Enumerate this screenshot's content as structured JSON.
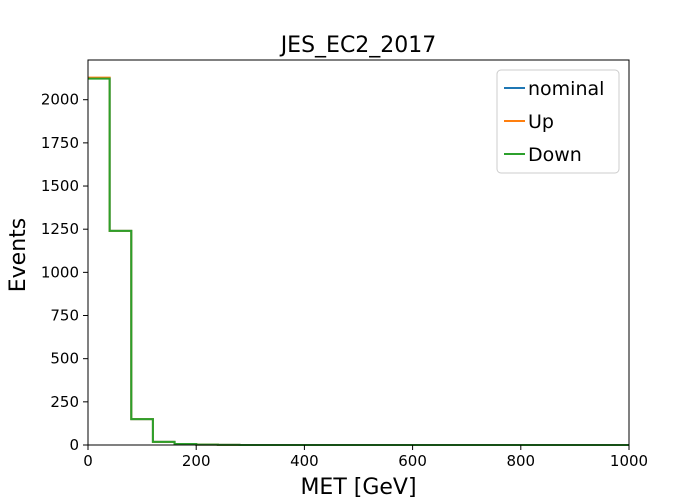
{
  "chart_data": {
    "type": "line",
    "drawstyle": "steps",
    "title": "JES_EC2_2017",
    "xlabel": "MET [GeV]",
    "ylabel": "Events",
    "xlim": [
      0,
      1000
    ],
    "ylim": [
      0,
      2230
    ],
    "x_ticks": [
      0,
      200,
      400,
      600,
      800,
      1000
    ],
    "y_ticks": [
      0,
      250,
      500,
      750,
      1000,
      1250,
      1500,
      1750,
      2000
    ],
    "bin_edges": [
      0,
      40,
      80,
      120,
      160,
      200,
      240,
      280,
      320,
      360,
      400,
      440,
      480,
      520,
      560,
      600,
      640,
      680,
      720,
      760,
      800,
      840,
      880,
      920,
      960,
      1000
    ],
    "series": [
      {
        "name": "nominal",
        "color": "#1f77b4",
        "values": [
          2125,
          1240,
          150,
          18,
          6,
          2,
          1,
          0,
          0,
          0,
          0,
          0,
          0,
          0,
          0,
          0,
          0,
          0,
          0,
          0,
          0,
          0,
          0,
          0,
          0
        ]
      },
      {
        "name": "Up",
        "color": "#ff7f0e",
        "values": [
          2128,
          1240,
          150,
          18,
          6,
          2,
          1,
          0,
          0,
          0,
          0,
          0,
          0,
          0,
          0,
          0,
          0,
          0,
          0,
          0,
          0,
          0,
          0,
          0,
          0
        ]
      },
      {
        "name": "Down",
        "color": "#2ca02c",
        "values": [
          2122,
          1240,
          150,
          18,
          6,
          2,
          1,
          0,
          0,
          0,
          0,
          0,
          0,
          0,
          0,
          0,
          0,
          0,
          0,
          0,
          0,
          0,
          0,
          0,
          0
        ]
      }
    ],
    "legend_position": "top-right",
    "grid": false
  }
}
